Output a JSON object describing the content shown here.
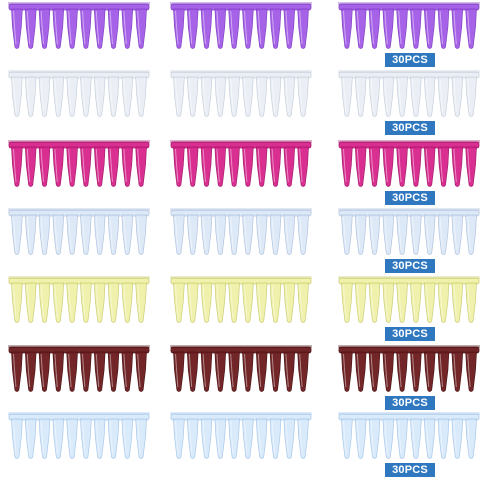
{
  "product": {
    "badge_text": "30PCS",
    "rows": [
      {
        "name": "purple",
        "color": "#a35be6",
        "edge": "#7d3bc2",
        "opacity": 0.95,
        "has_badge": true
      },
      {
        "name": "clear",
        "color": "#e9eef5",
        "edge": "#c3ccd8",
        "opacity": 0.9,
        "has_badge": true
      },
      {
        "name": "magenta",
        "color": "#d8248c",
        "edge": "#a11466",
        "opacity": 0.95,
        "has_badge": true
      },
      {
        "name": "light-blue",
        "color": "#dbe7f7",
        "edge": "#a9bedc",
        "opacity": 0.9,
        "has_badge": true
      },
      {
        "name": "yellow",
        "color": "#eef0a6",
        "edge": "#c8ca6c",
        "opacity": 0.92,
        "has_badge": true
      },
      {
        "name": "brown",
        "color": "#6e1f22",
        "edge": "#4a1012",
        "opacity": 0.97,
        "has_badge": true
      },
      {
        "name": "sky-blue",
        "color": "#d5e8fb",
        "edge": "#a0c3e8",
        "opacity": 0.9,
        "has_badge": true
      }
    ]
  }
}
